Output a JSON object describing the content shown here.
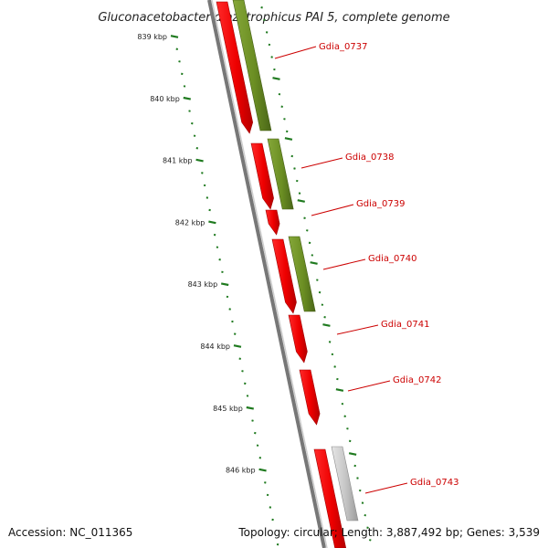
{
  "title": "Gluconacetobacter diazotrophicus PAI 5, complete genome",
  "accession": "Accession: NC_011365",
  "summary": "Topology: circular; Length: 3,887,492 bp; Genes: 3,539",
  "colors": {
    "red_feature": "#ee0000",
    "green_feature": "#6b8e23",
    "gray_feature": "#bbbbbb",
    "backbone": "#777777",
    "tick": "#1f7a1f",
    "label": "#cc0000"
  },
  "kbp_ticks": [
    {
      "kbp": 839,
      "label": "839 kbp"
    },
    {
      "kbp": 840,
      "label": "840 kbp"
    },
    {
      "kbp": 841,
      "label": "841 kbp"
    },
    {
      "kbp": 842,
      "label": "842 kbp"
    },
    {
      "kbp": 843,
      "label": "843 kbp"
    },
    {
      "kbp": 844,
      "label": "844 kbp"
    },
    {
      "kbp": 845,
      "label": "845 kbp"
    },
    {
      "kbp": 846,
      "label": "846 kbp"
    }
  ],
  "genes": [
    {
      "id": "Gdia_0737",
      "label": "Gdia_0737"
    },
    {
      "id": "Gdia_0738",
      "label": "Gdia_0738"
    },
    {
      "id": "Gdia_0739",
      "label": "Gdia_0739"
    },
    {
      "id": "Gdia_0740",
      "label": "Gdia_0740"
    },
    {
      "id": "Gdia_0741",
      "label": "Gdia_0741"
    },
    {
      "id": "Gdia_0742",
      "label": "Gdia_0742"
    },
    {
      "id": "Gdia_0743",
      "label": "Gdia_0743"
    }
  ]
}
